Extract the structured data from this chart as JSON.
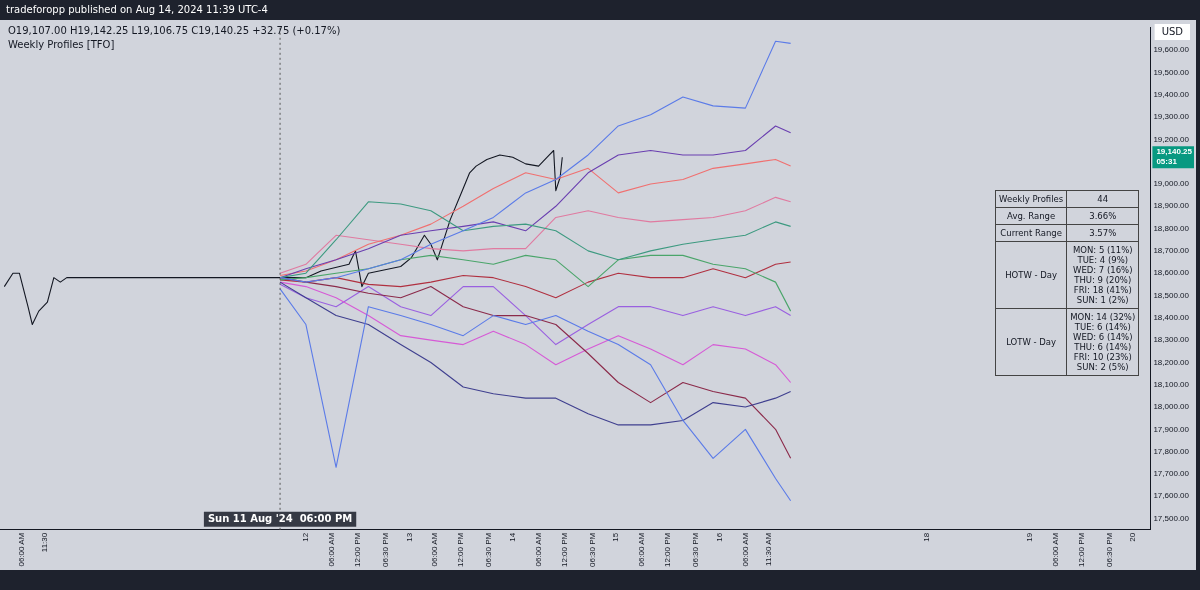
{
  "chart_data": [
    {
      "type": "line",
      "title": "Weekly Profiles [TFO]",
      "annotations": [
        "tradeforopp published on Aug 14, 2024 11:39 UTC-4",
        "O19,107.00 H19,142.25 L19,106.75 C19,140.25 +32.75 (+0.17%)",
        "USD",
        "19,140.25 05:31"
      ],
      "x": [
        "2024-08-11T18:00",
        "2024-08-12T00:00",
        "2024-08-12T07:00",
        "2024-08-12T14:30",
        "2024-08-12T22:00",
        "2024-08-13T05:00",
        "2024-08-13T12:30",
        "2024-08-13T19:30",
        "2024-08-14T03:00",
        "2024-08-14T10:00",
        "2024-08-14T17:30",
        "2024-08-15T00:30",
        "2024-08-15T08:00",
        "2024-08-15T15:30",
        "2024-08-15T22:30",
        "2024-08-16T06:00",
        "2024-08-16T13:00",
        "2024-08-16T16:30"
      ],
      "xlim": [
        "2024-08-09T01:00",
        "2024-08-20T04:00"
      ],
      "xticks": [
        {
          "value": "2024-08-09T06:00",
          "label": "06:00 AM"
        },
        {
          "value": "2024-08-09T11:30",
          "label": "11:30"
        },
        {
          "value": "2024-08-12",
          "label": "12"
        },
        {
          "value": "2024-08-12T06:00",
          "label": "06:00 AM"
        },
        {
          "value": "2024-08-12T12:00",
          "label": "12:00 PM"
        },
        {
          "value": "2024-08-12T18:30",
          "label": "06:30 PM"
        },
        {
          "value": "2024-08-13",
          "label": "13"
        },
        {
          "value": "2024-08-13T06:00",
          "label": "06:00 AM"
        },
        {
          "value": "2024-08-13T12:00",
          "label": "12:00 PM"
        },
        {
          "value": "2024-08-13T18:30",
          "label": "06:30 PM"
        },
        {
          "value": "2024-08-14",
          "label": "14"
        },
        {
          "value": "2024-08-14T06:00",
          "label": "06:00 AM"
        },
        {
          "value": "2024-08-14T12:00",
          "label": "12:00 PM"
        },
        {
          "value": "2024-08-14T18:30",
          "label": "06:30 PM"
        },
        {
          "value": "2024-08-15",
          "label": "15"
        },
        {
          "value": "2024-08-15T06:00",
          "label": "06:00 AM"
        },
        {
          "value": "2024-08-15T12:00",
          "label": "12:00 PM"
        },
        {
          "value": "2024-08-15T18:30",
          "label": "06:30 PM"
        },
        {
          "value": "2024-08-16",
          "label": "16"
        },
        {
          "value": "2024-08-16T06:00",
          "label": "06:00 AM"
        },
        {
          "value": "2024-08-16T11:30",
          "label": "11:30 AM"
        },
        {
          "value": "2024-08-18",
          "label": "18"
        },
        {
          "value": "2024-08-19",
          "label": "19"
        },
        {
          "value": "2024-08-19T06:00",
          "label": "06:00 AM"
        },
        {
          "value": "2024-08-19T12:00",
          "label": "12:00 PM"
        },
        {
          "value": "2024-08-19T18:30",
          "label": "06:30 PM"
        },
        {
          "value": "2024-08-20",
          "label": "20"
        }
      ],
      "ylim": [
        17450,
        19700
      ],
      "yticks": [
        {
          "value": 17500,
          "label": "17,500.00"
        },
        {
          "value": 17600,
          "label": "17,600.00"
        },
        {
          "value": 17700,
          "label": "17,700.00"
        },
        {
          "value": 17800,
          "label": "17,800.00"
        },
        {
          "value": 17900,
          "label": "17,900.00"
        },
        {
          "value": 18000,
          "label": "18,000.00"
        },
        {
          "value": 18100,
          "label": "18,100.00"
        },
        {
          "value": 18200,
          "label": "18,200.00"
        },
        {
          "value": 18300,
          "label": "18,300.00"
        },
        {
          "value": 18400,
          "label": "18,400.00"
        },
        {
          "value": 18500,
          "label": "18,500.00"
        },
        {
          "value": 18600,
          "label": "18,600.00"
        },
        {
          "value": 18700,
          "label": "18,700.00"
        },
        {
          "value": 18800,
          "label": "18,800.00"
        },
        {
          "value": 18900,
          "label": "18,900.00"
        },
        {
          "value": 19000,
          "label": "19,000.00"
        },
        {
          "value": 19200,
          "label": "19,200.00"
        },
        {
          "value": 19300,
          "label": "19,300.00"
        },
        {
          "value": 19400,
          "label": "19,400.00"
        },
        {
          "value": 19500,
          "label": "19,500.00"
        },
        {
          "value": 19600,
          "label": "19,600.00"
        }
      ],
      "grid": false,
      "legend": false,
      "marker": "none",
      "ref_lines": [
        {
          "axis": "x",
          "value": "2024-08-11T18:00",
          "label": "Sun 11 Aug '24  06:00 PM",
          "color": "#555555",
          "line_style": "dotted"
        }
      ],
      "series": [
        {
          "color": "#5b7be8",
          "values": [
            18580,
            18560,
            18580,
            18620,
            18660,
            18730,
            18790,
            18850,
            18960,
            19020,
            19130,
            19260,
            19310,
            19390,
            19350,
            19340,
            19640,
            19630
          ]
        },
        {
          "color": "#5b7be8",
          "values": [
            18530,
            18370,
            17730,
            18450,
            18410,
            18370,
            18320,
            18410,
            18370,
            18410,
            18340,
            18280,
            18190,
            17940,
            17770,
            17900,
            17680,
            17580
          ]
        },
        {
          "color": "#3f3f8f",
          "values": [
            18560,
            18490,
            18410,
            18370,
            18280,
            18200,
            18090,
            18060,
            18040,
            18040,
            17970,
            17920,
            17920,
            17940,
            18020,
            18000,
            18040,
            18070
          ]
        },
        {
          "color": "#3d9a80",
          "values": [
            18580,
            18600,
            18750,
            18920,
            18910,
            18880,
            18790,
            18810,
            18820,
            18790,
            18700,
            18660,
            18700,
            18730,
            18750,
            18770,
            18830,
            18810
          ]
        },
        {
          "color": "#8b2a4a",
          "values": [
            18580,
            18560,
            18540,
            18510,
            18490,
            18540,
            18450,
            18410,
            18410,
            18370,
            18240,
            18110,
            18020,
            18110,
            18070,
            18040,
            17900,
            17770
          ]
        },
        {
          "color": "#6a3fb0",
          "values": [
            18580,
            18620,
            18660,
            18710,
            18770,
            18790,
            18810,
            18830,
            18790,
            18900,
            19050,
            19130,
            19150,
            19130,
            19130,
            19150,
            19260,
            19230
          ]
        },
        {
          "color": "#f07070",
          "values": [
            18590,
            18610,
            18660,
            18730,
            18770,
            18820,
            18900,
            18980,
            19050,
            19020,
            19070,
            18960,
            19000,
            19020,
            19070,
            19090,
            19110,
            19080
          ]
        },
        {
          "color": "#d65ad6",
          "values": [
            18560,
            18540,
            18490,
            18410,
            18320,
            18300,
            18280,
            18340,
            18280,
            18190,
            18260,
            18320,
            18260,
            18190,
            18280,
            18260,
            18190,
            18110
          ]
        },
        {
          "color": "#4aa56a",
          "values": [
            18570,
            18580,
            18600,
            18620,
            18660,
            18680,
            18660,
            18640,
            18680,
            18660,
            18540,
            18660,
            18680,
            18680,
            18640,
            18620,
            18560,
            18430
          ]
        },
        {
          "color": "#b03040",
          "values": [
            18570,
            18560,
            18580,
            18550,
            18540,
            18560,
            18590,
            18580,
            18540,
            18490,
            18560,
            18600,
            18580,
            18580,
            18620,
            18580,
            18640,
            18650
          ]
        },
        {
          "color": "#9a60e0",
          "values": [
            18550,
            18490,
            18450,
            18540,
            18450,
            18410,
            18540,
            18540,
            18410,
            18280,
            18370,
            18450,
            18450,
            18410,
            18450,
            18410,
            18450,
            18410
          ]
        },
        {
          "color": "#e07aa0",
          "values": [
            18600,
            18640,
            18770,
            18750,
            18730,
            18710,
            18700,
            18710,
            18710,
            18850,
            18880,
            18850,
            18830,
            18840,
            18850,
            18880,
            18940,
            18920
          ]
        },
        {
          "color": "#131722",
          "x": [
            "2024-08-09T02:00",
            "2024-08-09T04:00",
            "2024-08-09T05:30",
            "2024-08-09T07:30",
            "2024-08-09T08:30",
            "2024-08-09T10:00",
            "2024-08-09T12:00",
            "2024-08-09T13:30",
            "2024-08-09T15:00",
            "2024-08-09T16:30",
            "2024-08-12T00:00",
            "2024-08-12T03:30",
            "2024-08-12T10:00",
            "2024-08-12T11:30",
            "2024-08-12T13:00",
            "2024-08-12T14:30",
            "2024-08-12T22:00",
            "2024-08-13T00:30",
            "2024-08-13T03:30",
            "2024-08-13T05:00",
            "2024-08-13T06:30",
            "2024-08-13T09:30",
            "2024-08-13T12:30",
            "2024-08-13T14:00",
            "2024-08-13T15:30",
            "2024-08-13T18:00",
            "2024-08-13T21:00",
            "2024-08-14T00:00",
            "2024-08-14T03:00",
            "2024-08-14T06:00",
            "2024-08-14T08:30",
            "2024-08-14T09:30",
            "2024-08-14T10:00",
            "2024-08-14T11:00",
            "2024-08-14T11:30"
          ],
          "values": [
            18540,
            18600,
            18600,
            18450,
            18370,
            18430,
            18470,
            18580,
            18560,
            18580,
            18580,
            18610,
            18640,
            18700,
            18540,
            18600,
            18630,
            18670,
            18770,
            18730,
            18660,
            18840,
            18980,
            19050,
            19080,
            19110,
            19130,
            19120,
            19090,
            19080,
            19130,
            19150,
            18970,
            19030,
            19120
          ]
        }
      ]
    },
    {
      "type": "other",
      "categories": [
        "Weekly Profiles",
        "Avg. Range",
        "Current Range",
        "HOTW - Day",
        "LOTW - Day"
      ],
      "value_labels": [
        "44",
        "3.66%",
        "3.57%",
        "MON: 5 (11%)\nTUE: 4 (9%)\nWED: 7 (16%)\nTHU: 9 (20%)\nFRI: 18 (41%)\nSUN: 1 (2%)",
        "MON: 14 (32%)\nTUE: 6 (14%)\nWED: 6 (14%)\nTHU: 6 (14%)\nFRI: 10 (23%)\nSUN: 2 (5%)"
      ]
    }
  ]
}
